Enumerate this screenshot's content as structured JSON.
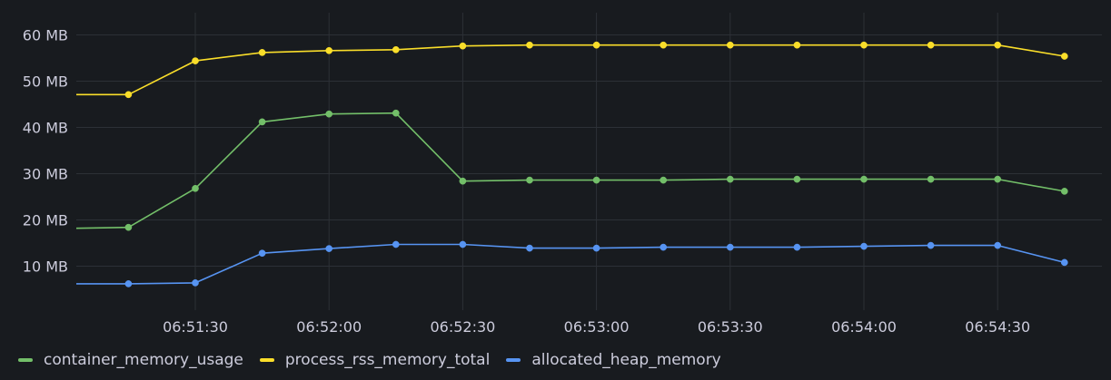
{
  "chart_data": {
    "type": "line",
    "x_ticks": [
      "06:51:30",
      "06:52:00",
      "06:52:30",
      "06:53:00",
      "06:53:30",
      "06:54:00",
      "06:54:30"
    ],
    "y_ticks": [
      "10 MB",
      "20 MB",
      "30 MB",
      "40 MB",
      "50 MB",
      "60 MB"
    ],
    "y_unit": "MB",
    "ylim": [
      0,
      63
    ],
    "x": [
      "06:51:00",
      "06:51:15",
      "06:51:30",
      "06:51:45",
      "06:52:00",
      "06:52:15",
      "06:52:30",
      "06:52:45",
      "06:53:00",
      "06:53:15",
      "06:53:30",
      "06:53:45",
      "06:54:00",
      "06:54:15",
      "06:54:30",
      "06:54:45"
    ],
    "grid": true,
    "legend_position": "bottom-left",
    "series": [
      {
        "name": "container_memory_usage",
        "color": "#73bf69",
        "marker_from_index": 1,
        "values": [
          18.2,
          18.4,
          26.8,
          41.2,
          42.9,
          43.1,
          28.4,
          28.6,
          28.6,
          28.6,
          28.8,
          28.8,
          28.8,
          28.8,
          28.8,
          26.2
        ]
      },
      {
        "name": "process_rss_memory_total",
        "color": "#fade2a",
        "marker_from_index": 1,
        "values": [
          47.1,
          47.1,
          54.4,
          56.2,
          56.6,
          56.8,
          57.6,
          57.8,
          57.8,
          57.8,
          57.8,
          57.8,
          57.8,
          57.8,
          57.8,
          55.4
        ]
      },
      {
        "name": "allocated_heap_memory",
        "color": "#5794f2",
        "marker_from_index": 1,
        "values": [
          6.2,
          6.2,
          6.4,
          12.8,
          13.8,
          14.7,
          14.7,
          13.9,
          13.9,
          14.1,
          14.1,
          14.1,
          14.3,
          14.5,
          14.5,
          10.8
        ]
      }
    ]
  },
  "colors": {
    "background": "#181b1f",
    "grid": "#2c3036",
    "text": "#ccccdc"
  }
}
